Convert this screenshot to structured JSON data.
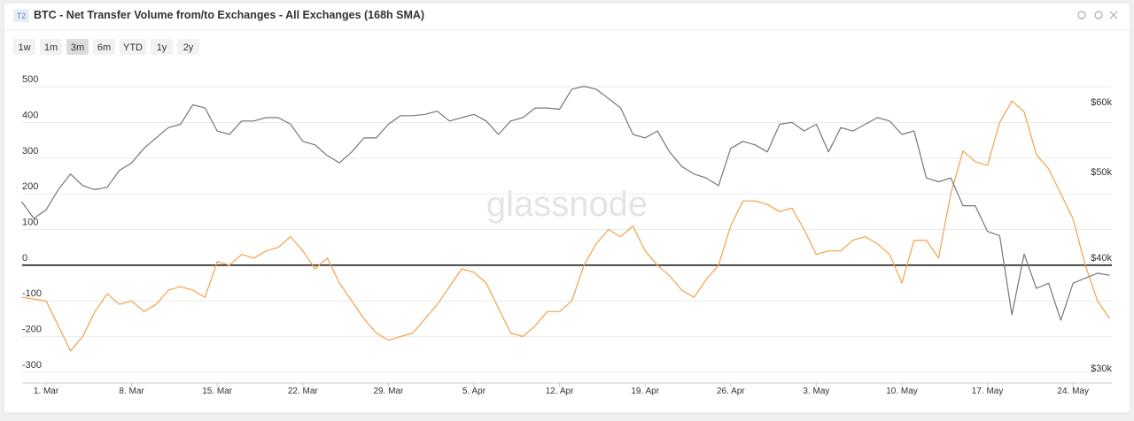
{
  "badge": "T2",
  "ranges": [
    "1w",
    "1m",
    "3m",
    "6m",
    "YTD",
    "1y",
    "2y"
  ],
  "active_range": "3m",
  "watermark": "glassnode",
  "chart_data": {
    "type": "line",
    "title": "BTC - Net Transfer Volume from/to Exchanges - All Exchanges (168h SMA)",
    "categories": [
      null,
      null,
      "1. Mar",
      null,
      null,
      null,
      null,
      null,
      null,
      "8. Mar",
      null,
      null,
      null,
      null,
      null,
      null,
      "15. Mar",
      null,
      null,
      null,
      null,
      null,
      null,
      "22. Mar",
      null,
      null,
      null,
      null,
      null,
      null,
      "29. Mar",
      null,
      null,
      null,
      null,
      null,
      null,
      "5. Apr",
      null,
      null,
      null,
      null,
      null,
      null,
      "12. Apr",
      null,
      null,
      null,
      null,
      null,
      null,
      "19. Apr",
      null,
      null,
      null,
      null,
      null,
      null,
      "26. Apr",
      null,
      null,
      null,
      null,
      null,
      null,
      "3. May",
      null,
      null,
      null,
      null,
      null,
      null,
      "10. May",
      null,
      null,
      null,
      null,
      null,
      null,
      "17. May",
      null,
      null,
      null,
      null,
      null,
      null,
      "24. May",
      null,
      null,
      null
    ],
    "series": [
      {
        "color": "#f5a04a",
        "axis": "y",
        "values": [
          -90,
          -95,
          -100,
          -170,
          -240,
          -200,
          -130,
          -80,
          -110,
          -100,
          -130,
          -110,
          -70,
          -60,
          -70,
          -90,
          10,
          0,
          30,
          20,
          40,
          50,
          80,
          40,
          -10,
          20,
          -50,
          -100,
          -150,
          -190,
          -210,
          -200,
          -190,
          -150,
          -110,
          -60,
          -10,
          -20,
          -50,
          -120,
          -190,
          -200,
          -170,
          -130,
          -130,
          -100,
          0,
          60,
          100,
          80,
          110,
          40,
          0,
          -30,
          -70,
          -90,
          -40,
          0,
          110,
          180,
          180,
          170,
          150,
          160,
          100,
          30,
          40,
          40,
          70,
          80,
          60,
          30,
          -50,
          70,
          70,
          20,
          200,
          320,
          290,
          280,
          400,
          460,
          430,
          310,
          270,
          200,
          130,
          0,
          -100,
          -150
        ]
      },
      {
        "color": "#777777",
        "axis": "y2",
        "values": [
          47000,
          45000,
          46000,
          48500,
          50500,
          49000,
          48500,
          48800,
          51000,
          52000,
          54000,
          55500,
          57000,
          57500,
          60500,
          60000,
          56500,
          56000,
          58000,
          58000,
          58500,
          58500,
          57500,
          55000,
          54500,
          53000,
          52000,
          53500,
          55500,
          55500,
          57500,
          58800,
          58800,
          59000,
          59500,
          58000,
          58500,
          59000,
          58000,
          56000,
          58000,
          58500,
          60000,
          60000,
          59800,
          63000,
          63500,
          63000,
          61500,
          60000,
          56000,
          55500,
          56500,
          53500,
          51500,
          50500,
          50000,
          49000,
          54000,
          55000,
          54500,
          53500,
          57500,
          57800,
          56500,
          57500,
          53500,
          57000,
          56500,
          57500,
          58500,
          58000,
          56000,
          56500,
          50000,
          49500,
          50000,
          46500,
          46500,
          43500,
          43000,
          35000,
          41000,
          37500,
          38000,
          34500,
          38000,
          38500,
          39000,
          38800
        ]
      }
    ],
    "ylim": [
      -330,
      525
    ],
    "yticks": [
      -300,
      -200,
      -100,
      0,
      100,
      200,
      300,
      400,
      500
    ],
    "y2lim": [
      29300,
      64900
    ],
    "y2log": true,
    "y2ticks": [
      {
        "value": 30000,
        "label": "$30k"
      },
      {
        "value": 40000,
        "label": "$40k"
      },
      {
        "value": 50000,
        "label": "$50k"
      },
      {
        "value": 60000,
        "label": "$60k"
      }
    ],
    "grid": true
  }
}
